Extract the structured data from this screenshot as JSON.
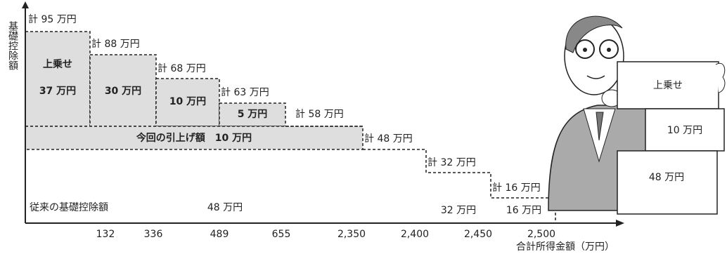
{
  "axis": {
    "y_label": "基礎控除額",
    "x_label": "合計所得金額（万円）",
    "x_ticks": [
      "132",
      "336",
      "489",
      "655",
      "2,350",
      "2,400",
      "2,450",
      "2,500"
    ]
  },
  "totals": [
    "計 95 万円",
    "計 88 万円",
    "計 68 万円",
    "計 63 万円",
    "計 58 万円",
    "計 48 万円",
    "計 32 万円",
    "計 16 万円"
  ],
  "blocks": {
    "title": "上乗せ",
    "labels": [
      "37 万円",
      "30 万円",
      "10 万円",
      "5 万円"
    ]
  },
  "band": "今回の引上げ額　10 万円",
  "base": {
    "title": "従来の基礎控除額",
    "labels": [
      "48 万円",
      "32 万円",
      "16 万円"
    ]
  },
  "cards": [
    "上乗せ",
    "10 万円",
    "48 万円"
  ]
}
